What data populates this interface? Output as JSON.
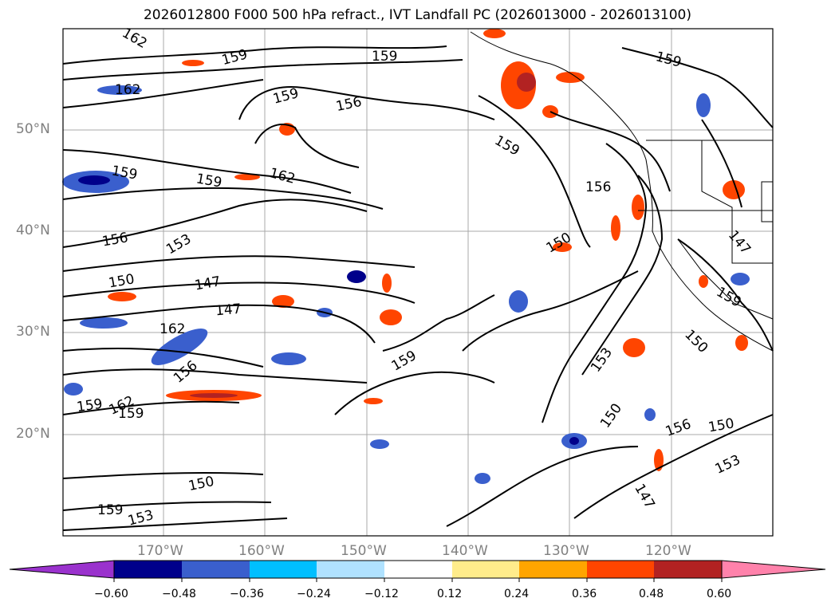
{
  "title": "2026012800 F000 500 hPa refract., IVT Landfall PC (2026013000 - 2026013100)",
  "lat_labels": [
    "50°N",
    "40°N",
    "30°N",
    "20°N"
  ],
  "lon_labels": [
    "170°W",
    "160°W",
    "150°W",
    "140°W",
    "130°W",
    "120°W"
  ],
  "contour_labels": [
    "162",
    "159",
    "159",
    "159",
    "162",
    "159",
    "156",
    "159",
    "159",
    "159",
    "162",
    "156",
    "156",
    "153",
    "150",
    "150",
    "147",
    "147",
    "147",
    "162",
    "159",
    "159",
    "153",
    "150",
    "156",
    "159",
    "162",
    "159",
    "150",
    "156",
    "150",
    "153",
    "150",
    "147",
    "159",
    "153"
  ],
  "colorbar": {
    "ticks": [
      "−0.60",
      "−0.48",
      "−0.36",
      "−0.24",
      "−0.12",
      "0.12",
      "0.24",
      "0.36",
      "0.48",
      "0.60"
    ],
    "colors": [
      "#9a32cd",
      "#00008b",
      "#3a5fcd",
      "#00bfff",
      "#b0e2ff",
      "#ffffff",
      "#ffec8b",
      "#ffa500",
      "#ff4500",
      "#b22222",
      "#ff82ab"
    ]
  }
}
